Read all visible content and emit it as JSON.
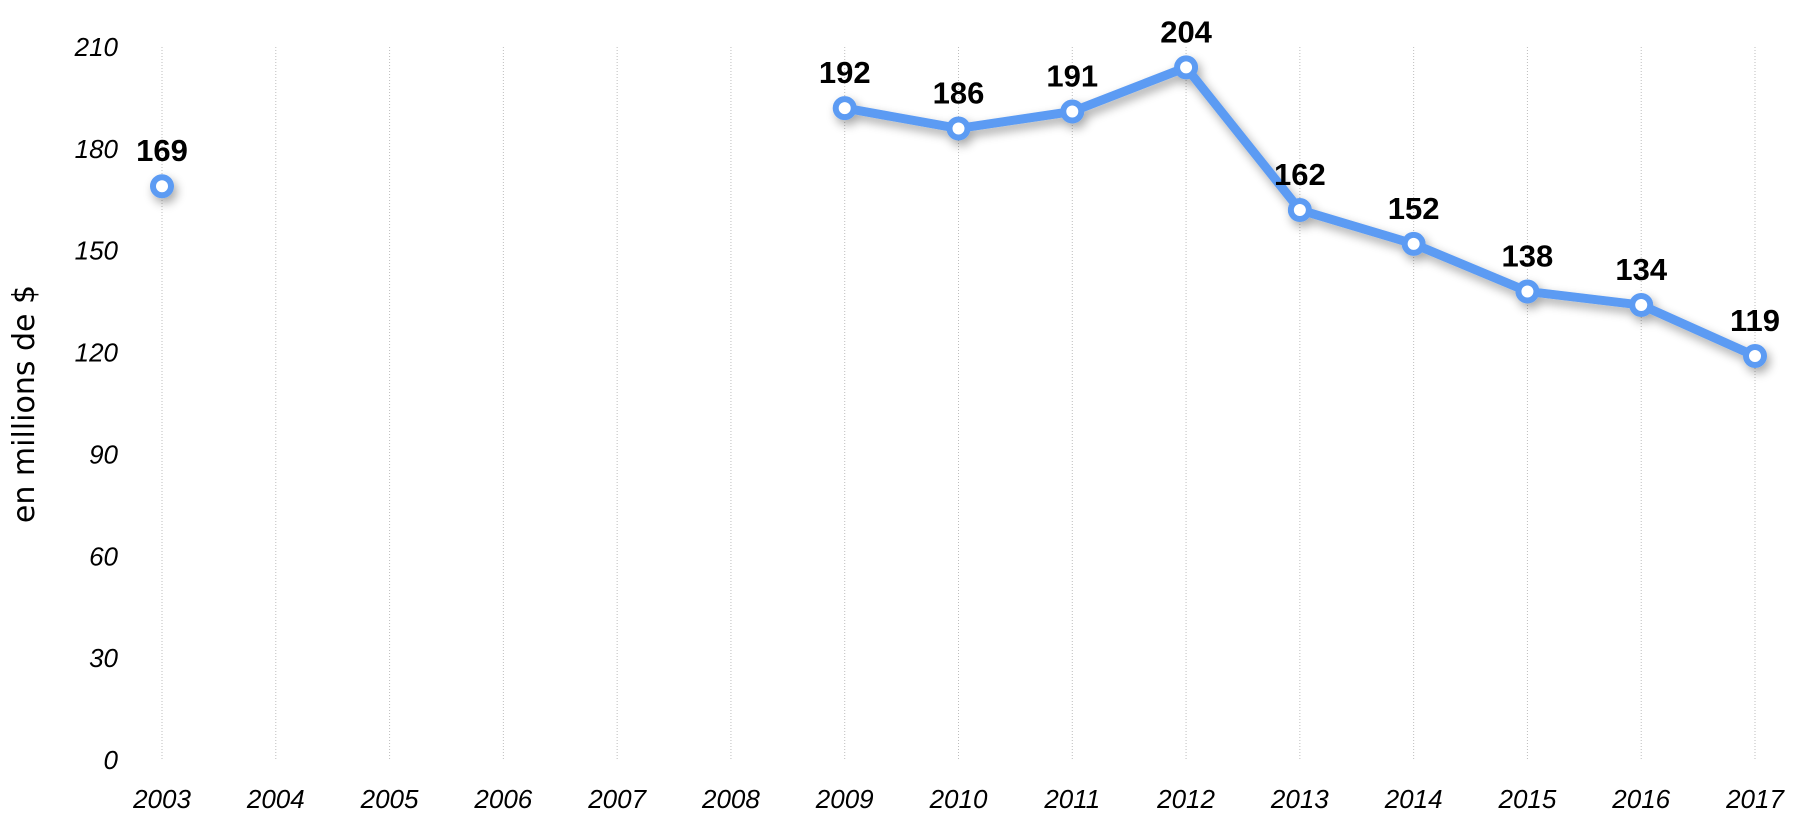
{
  "chart_data": {
    "type": "line",
    "x": [
      "2003",
      "2004",
      "2005",
      "2006",
      "2007",
      "2008",
      "2009",
      "2010",
      "2011",
      "2012",
      "2013",
      "2014",
      "2015",
      "2016",
      "2017"
    ],
    "series": [
      {
        "values": [
          169,
          null,
          null,
          null,
          null,
          null,
          192,
          186,
          191,
          204,
          162,
          152,
          138,
          134,
          119
        ],
        "color": "#5b9bf3"
      }
    ],
    "ylabel": "en millions de $",
    "ylim": [
      0,
      210
    ],
    "yticks": [
      0,
      30,
      60,
      90,
      120,
      150,
      180,
      210
    ],
    "grid": "vertical",
    "data_labels": true
  }
}
